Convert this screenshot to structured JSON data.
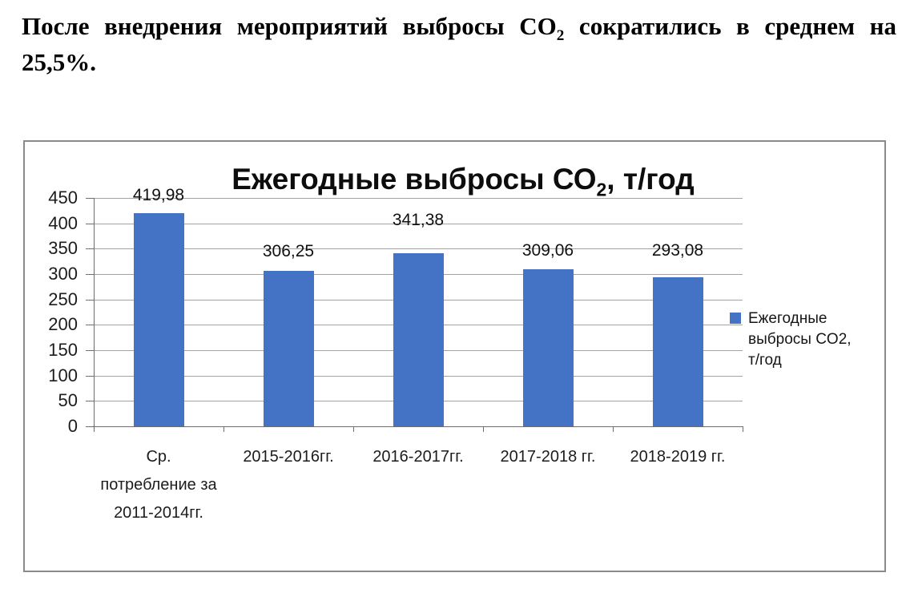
{
  "header": {
    "line1_pre": "После внедрения мероприятий выбросы СО",
    "line1_sub": "2",
    "line1_post": " сократились в среднем на",
    "line2": "25,5%."
  },
  "chart_data": {
    "type": "bar",
    "title": {
      "pre": "Ежегодные выбросы СО",
      "sub": "2",
      "post": ", т/год"
    },
    "categories": [
      "Ср. потребление за 2011-2014гг.",
      "2015-2016гг.",
      "2016-2017гг.",
      "2017-2018 гг.",
      "2018-2019 гг."
    ],
    "categories_lines": [
      [
        "Ср.",
        "потребление за",
        "2011-2014гг."
      ],
      [
        "2015-2016гг."
      ],
      [
        "2016-2017гг."
      ],
      [
        "2017-2018 гг."
      ],
      [
        "2018-2019 гг."
      ]
    ],
    "values": [
      419.98,
      306.25,
      341.38,
      309.06,
      293.08
    ],
    "value_labels": [
      "419,98",
      "306,25",
      "341,38",
      "309,06",
      "293,08"
    ],
    "label_gaps": [
      11,
      13,
      30,
      12,
      22
    ],
    "series_name": "Ежегодные выбросы CO2, т/год",
    "legend_lines": [
      "Ежегодные",
      "выбросы CO2,",
      "т/год"
    ],
    "legend_position": "right",
    "xlabel": "",
    "ylabel": "",
    "ylim": [
      0,
      450
    ],
    "yticks": [
      0,
      50,
      100,
      150,
      200,
      250,
      300,
      350,
      400,
      450
    ],
    "ytick_labels": [
      "0",
      "50",
      "100",
      "150",
      "200",
      "250",
      "300",
      "350",
      "400",
      "450"
    ],
    "grid": true,
    "colors": {
      "bar": "#4472C4",
      "gridline": "#a3a3a3",
      "axis": "#6e6e6e",
      "text": "#1c1c1c"
    }
  }
}
